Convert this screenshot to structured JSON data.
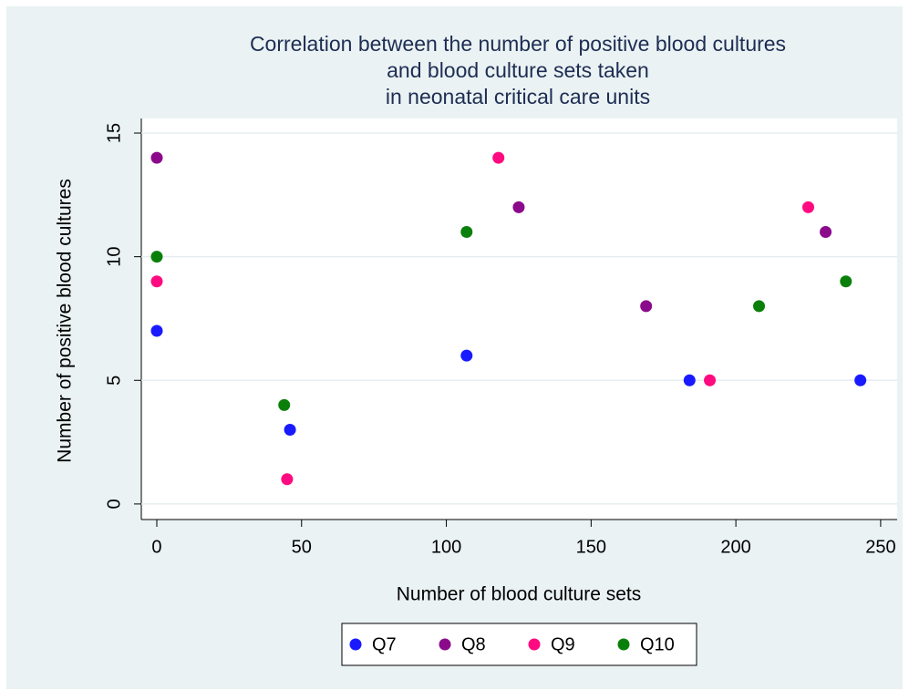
{
  "chart_data": {
    "type": "scatter",
    "title": [
      "Correlation between the number of positive blood cultures",
      "and blood culture sets taken",
      "in neonatal critical care units"
    ],
    "x_label": "Number of blood culture sets",
    "y_label": "Number of positive blood cultures",
    "series": [
      {
        "name": "Q7",
        "color": "#1a1aff",
        "x": [
          0,
          46,
          107,
          184,
          243
        ],
        "values": [
          7,
          3,
          6,
          5,
          5
        ]
      },
      {
        "name": "Q8",
        "color": "#8b0a8b",
        "x": [
          0,
          125,
          169,
          231
        ],
        "values": [
          14,
          12,
          8,
          11
        ]
      },
      {
        "name": "Q9",
        "color": "#ff0a80",
        "x": [
          0,
          45,
          118,
          191,
          225
        ],
        "values": [
          9,
          1,
          14,
          5,
          12
        ]
      },
      {
        "name": "Q10",
        "color": "#0a800a",
        "x": [
          0,
          44,
          107,
          208,
          238
        ],
        "values": [
          10,
          4,
          11,
          8,
          9
        ]
      }
    ],
    "xlim": [
      -5.35,
      255.7
    ],
    "xticks": [
      0,
      50,
      100,
      150,
      200,
      250
    ],
    "ylim": [
      -0.63,
      15.59
    ],
    "yticks": [
      0,
      5,
      10,
      15
    ],
    "grid": true,
    "legend": "bottom"
  }
}
